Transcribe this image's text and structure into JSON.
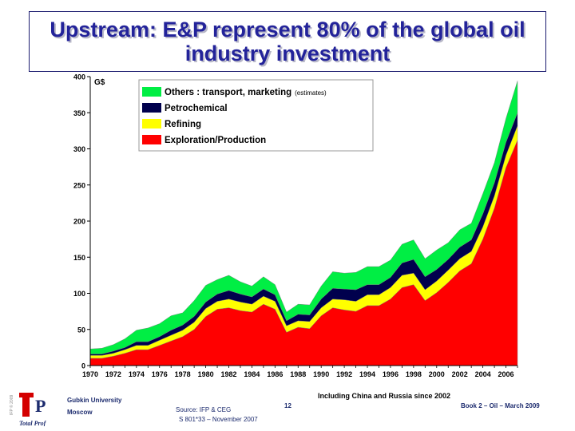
{
  "title": {
    "line1": "Upstream: E&P represent 80% of the global oil",
    "line2": "industry investment"
  },
  "chart_data": {
    "type": "area",
    "stacked": true,
    "unit_label": "G$",
    "ylim": [
      0,
      400
    ],
    "yticks": [
      0,
      50,
      100,
      150,
      200,
      250,
      300,
      350,
      400
    ],
    "x_tick_labels": [
      "1970",
      "1972",
      "1974",
      "1976",
      "1978",
      "1980",
      "1982",
      "1984",
      "1986",
      "1988",
      "1990",
      "1992",
      "1994",
      "1996",
      "1998",
      "2000",
      "2002",
      "2004",
      "2006"
    ],
    "x": [
      1970,
      1971,
      1972,
      1973,
      1974,
      1975,
      1976,
      1977,
      1978,
      1979,
      1980,
      1981,
      1982,
      1983,
      1984,
      1985,
      1986,
      1987,
      1988,
      1989,
      1990,
      1991,
      1992,
      1993,
      1994,
      1995,
      1996,
      1997,
      1998,
      1999,
      2000,
      2001,
      2002,
      2003,
      2004,
      2005,
      2006,
      2007
    ],
    "legend_position": "top",
    "series": [
      {
        "name": "Exploration/Production",
        "color": "#ff0000",
        "values": [
          10,
          10,
          13,
          17,
          22,
          22,
          28,
          34,
          40,
          50,
          68,
          78,
          80,
          76,
          74,
          85,
          78,
          46,
          53,
          51,
          69,
          80,
          77,
          75,
          83,
          83,
          92,
          108,
          112,
          90,
          101,
          115,
          131,
          141,
          175,
          218,
          274,
          312
        ]
      },
      {
        "name": "Refining",
        "color": "#ffff00",
        "values": [
          4,
          4,
          4,
          5,
          6,
          6,
          7,
          8,
          9,
          10,
          11,
          11,
          12,
          12,
          11,
          11,
          11,
          9,
          9,
          10,
          11,
          12,
          14,
          14,
          15,
          15,
          16,
          17,
          16,
          15,
          16,
          17,
          17,
          17,
          17,
          17,
          17,
          20
        ]
      },
      {
        "name": "Petrochemical",
        "color": "#00004d",
        "values": [
          2,
          2,
          3,
          3,
          5,
          5,
          5,
          7,
          7,
          8,
          9,
          10,
          12,
          11,
          10,
          10,
          9,
          7,
          9,
          9,
          12,
          15,
          15,
          16,
          14,
          14,
          14,
          17,
          19,
          18,
          16,
          15,
          16,
          16,
          18,
          18,
          18,
          18
        ]
      },
      {
        "name": "Others : transport, marketing",
        "name_note": "(estimates)",
        "color": "#00ee44",
        "values": [
          7,
          8,
          9,
          12,
          16,
          19,
          18,
          20,
          17,
          22,
          23,
          20,
          21,
          17,
          15,
          17,
          14,
          12,
          14,
          14,
          18,
          23,
          22,
          24,
          25,
          25,
          24,
          26,
          27,
          25,
          27,
          23,
          24,
          23,
          28,
          28,
          33,
          44
        ]
      }
    ]
  },
  "annotation": "Including China and Russia since 2002",
  "footer": {
    "university_line1": "Gubkin University",
    "university_line2": "Moscow",
    "source_line1": "Source: IFP & CEG",
    "source_line2": "S 801*33 – November 2007",
    "page_number": "12",
    "book_ref": "Book 2 – Oil – March 2009",
    "logo_text": "Total Prof",
    "logo_side_text": "IFP © 2009"
  }
}
